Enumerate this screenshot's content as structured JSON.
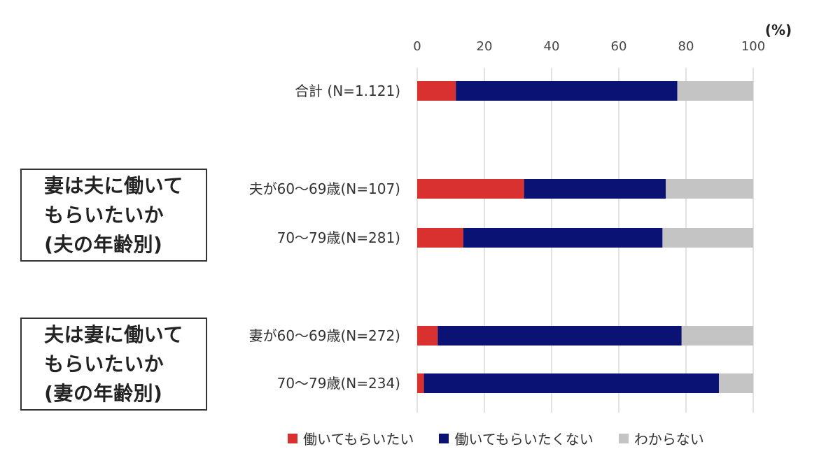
{
  "unit_label": "(%)",
  "groups": [
    {
      "lines": [
        "妻は夫に働いて",
        "もらいたいか",
        "(夫の年齢別)"
      ]
    },
    {
      "lines": [
        "夫は妻に働いて",
        "もらいたいか",
        "(妻の年齢別)"
      ]
    }
  ],
  "chart_data": {
    "type": "bar",
    "orientation": "horizontal",
    "stacked": true,
    "categories": [
      "合計 (N=1.121)",
      "夫が60〜69歳(N=107)",
      "70〜79歳(N=281)",
      "妻が60〜69歳(N=272)",
      "70〜79歳(N=234)"
    ],
    "series": [
      {
        "name": "働いてもらいたい",
        "color": "#d93030",
        "values": [
          11.5,
          31.8,
          13.7,
          6.1,
          2.0
        ]
      },
      {
        "name": "働いてもらいたくない",
        "color": "#0a1273",
        "values": [
          65.9,
          42.2,
          59.3,
          72.6,
          87.8
        ]
      },
      {
        "name": "わからない",
        "color": "#c4c4c4",
        "values": [
          22.6,
          26.0,
          27.0,
          21.3,
          10.2
        ]
      }
    ],
    "xlim": [
      0,
      100
    ],
    "xticks": [
      0,
      20,
      40,
      60,
      80,
      100
    ],
    "grid": true,
    "legend": "bottom"
  }
}
